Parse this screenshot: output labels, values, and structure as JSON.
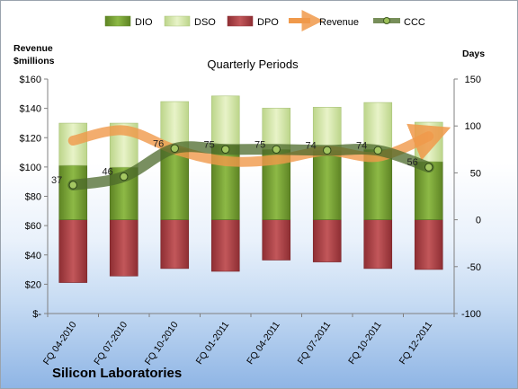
{
  "company": "Silicon Laboratories",
  "chart_data": {
    "type": "bar",
    "title": "Quarterly Periods",
    "left_axis_label": "Revenue\n$millions",
    "right_axis_label": "Days",
    "left_ticks": [
      "$-",
      "$20",
      "$40",
      "$60",
      "$80",
      "$100",
      "$120",
      "$140",
      "$160"
    ],
    "left_ylim": [
      0,
      160
    ],
    "right_ticks": [
      "-100",
      "-50",
      "0",
      "50",
      "100",
      "150"
    ],
    "right_ylim": [
      -100,
      150
    ],
    "grid": false,
    "legend_position": "top",
    "categories": [
      "FQ 04-2010",
      "FQ 07-2010",
      "FQ 10-2010",
      "FQ 01-2011",
      "FQ 04-2011",
      "FQ 07-2011",
      "FQ 10-2011",
      "FQ 12-2011"
    ],
    "series": [
      {
        "name": "DIO",
        "kind": "bar",
        "axis": "right",
        "color": "#77a033",
        "values": [
          58,
          56,
          76,
          80,
          75,
          74,
          75,
          62
        ]
      },
      {
        "name": "DSO",
        "kind": "bar",
        "axis": "right",
        "color": "#d7e8a8",
        "values": [
          45,
          47,
          50,
          52,
          44,
          46,
          50,
          42
        ]
      },
      {
        "name": "DPO",
        "kind": "bar",
        "axis": "right",
        "color": "#b04145",
        "values": [
          -67,
          -60,
          -52,
          -55,
          -43,
          -45,
          -52,
          -53
        ]
      },
      {
        "name": "Revenue",
        "kind": "line",
        "axis": "left",
        "color": "#f0994a",
        "values": [
          118,
          125,
          112,
          104,
          105,
          111,
          107,
          121
        ]
      },
      {
        "name": "CCC",
        "kind": "line",
        "axis": "right",
        "color": "#5f7a3c",
        "values": [
          37,
          46,
          76,
          75,
          75,
          74,
          74,
          56
        ]
      }
    ],
    "ccc_labels": [
      "37",
      "46",
      "76",
      "75",
      "75",
      "74",
      "74",
      "56"
    ]
  }
}
